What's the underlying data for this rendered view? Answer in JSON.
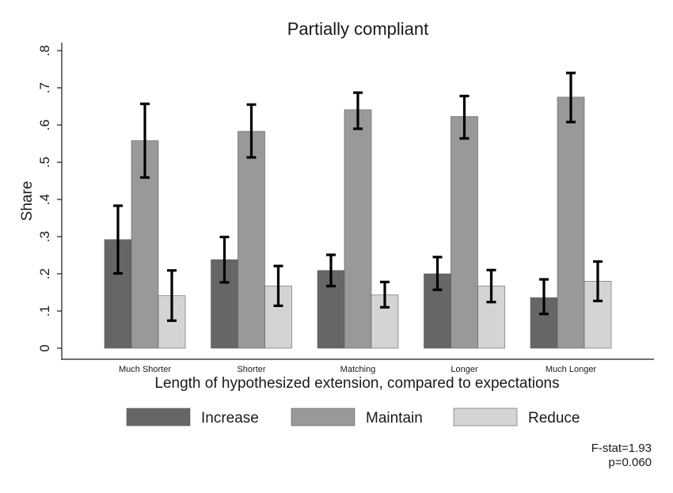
{
  "chart_data": {
    "type": "bar",
    "title": "Partially compliant",
    "xlabel": "Length of hypothesized extension, compared to expectations",
    "ylabel": "Share",
    "ylim": [
      0,
      0.8
    ],
    "yticks": [
      0,
      0.1,
      0.2,
      0.3,
      0.4,
      0.5,
      0.6,
      0.7,
      0.8
    ],
    "ytick_labels": [
      "0",
      ".1",
      ".2",
      ".3",
      ".4",
      ".5",
      ".6",
      ".7",
      ".8"
    ],
    "categories": [
      "Much Shorter",
      "Shorter",
      "Matching",
      "Longer",
      "Much Longer"
    ],
    "series": [
      {
        "name": "Increase",
        "color": "#666666",
        "values": [
          0.292,
          0.238,
          0.209,
          0.2,
          0.136
        ],
        "ci_low": [
          0.201,
          0.177,
          0.167,
          0.157,
          0.092
        ],
        "ci_high": [
          0.383,
          0.299,
          0.251,
          0.245,
          0.185
        ]
      },
      {
        "name": "Maintain",
        "color": "#999999",
        "values": [
          0.558,
          0.583,
          0.641,
          0.623,
          0.675
        ],
        "ci_low": [
          0.459,
          0.513,
          0.59,
          0.564,
          0.608
        ],
        "ci_high": [
          0.657,
          0.655,
          0.687,
          0.678,
          0.74
        ]
      },
      {
        "name": "Reduce",
        "color": "#d4d4d4",
        "values": [
          0.141,
          0.167,
          0.143,
          0.167,
          0.18
        ],
        "ci_low": [
          0.074,
          0.114,
          0.11,
          0.124,
          0.127
        ],
        "ci_high": [
          0.209,
          0.221,
          0.178,
          0.21,
          0.233
        ]
      }
    ],
    "legend": [
      "Increase",
      "Maintain",
      "Reduce"
    ],
    "grid": false,
    "annotations": {
      "fstat": "F-stat=1.93",
      "pvalue": "p=0.060"
    }
  }
}
